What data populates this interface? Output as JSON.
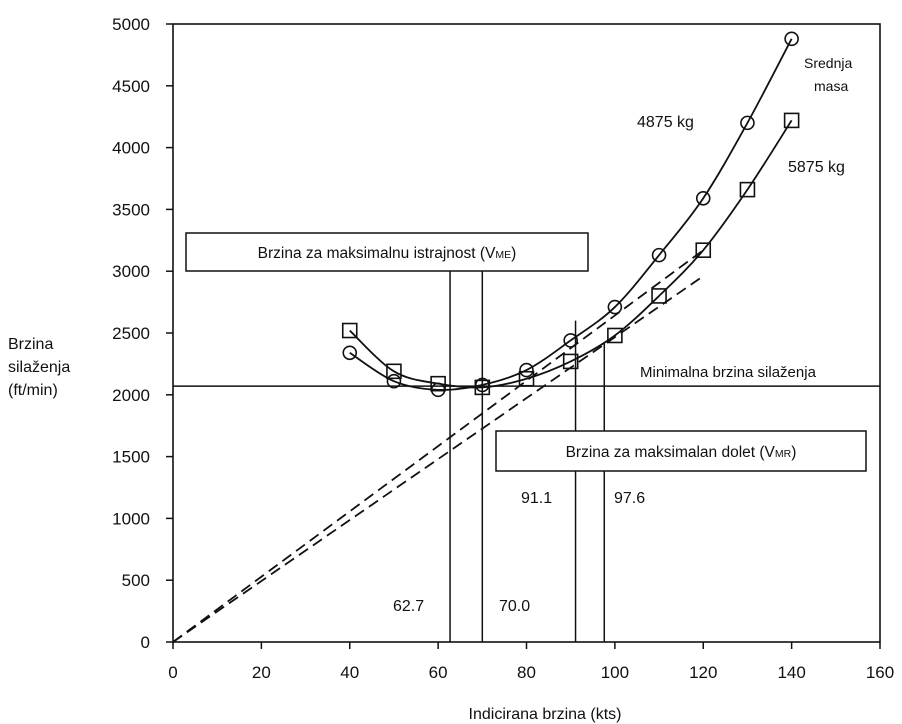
{
  "chart_data": {
    "type": "line",
    "xlabel": "Indicirana brzina (kts)",
    "ylabel": [
      "Brzina",
      "silaženja",
      "(ft/min)"
    ],
    "xlim": [
      0,
      160
    ],
    "ylim": [
      0,
      5000
    ],
    "xticks": [
      0,
      20,
      40,
      60,
      80,
      100,
      120,
      140,
      160
    ],
    "yticks": [
      0,
      500,
      1000,
      1500,
      2000,
      2500,
      3000,
      3500,
      4000,
      4500,
      5000
    ],
    "grid": false,
    "series": [
      {
        "name": "4875 kg",
        "marker": "circle",
        "x": [
          40,
          50,
          60,
          70,
          80,
          90,
          100,
          110,
          120,
          130,
          140
        ],
        "y": [
          2340,
          2110,
          2040,
          2080,
          2200,
          2440,
          2710,
          3130,
          3590,
          4200,
          4880
        ]
      },
      {
        "name": "5875 kg",
        "marker": "square",
        "x": [
          40,
          50,
          60,
          70,
          80,
          90,
          100,
          110,
          120,
          130,
          140
        ],
        "y": [
          2520,
          2190,
          2090,
          2060,
          2130,
          2270,
          2480,
          2800,
          3170,
          3660,
          4220
        ]
      }
    ],
    "tangent_lines": [
      {
        "x": [
          0,
          120
        ],
        "y": [
          0,
          3170
        ]
      },
      {
        "x": [
          0,
          120
        ],
        "y": [
          0,
          2960
        ]
      }
    ],
    "reference_lines": {
      "min_sink": {
        "y": 2070,
        "label": "Minimalna brzina silaženja"
      },
      "vme": [
        62.7,
        70.0
      ],
      "vmr": [
        91.1,
        97.6
      ]
    },
    "labels": {
      "vme_value_1": "62.7",
      "vme_value_2": "70.0",
      "vmr_value_1": "91.1",
      "vmr_value_2": "97.6",
      "curve_note_line1": "Srednja",
      "curve_note_line2": "masa"
    },
    "boxes": {
      "vme": {
        "text": "Brzina za maksimalnu istrajnost (V",
        "sub": "ME",
        "close": ")"
      },
      "vmr": {
        "text": "Brzina za maksimalan dolet (V",
        "sub": "MR",
        "close": ")"
      }
    }
  }
}
